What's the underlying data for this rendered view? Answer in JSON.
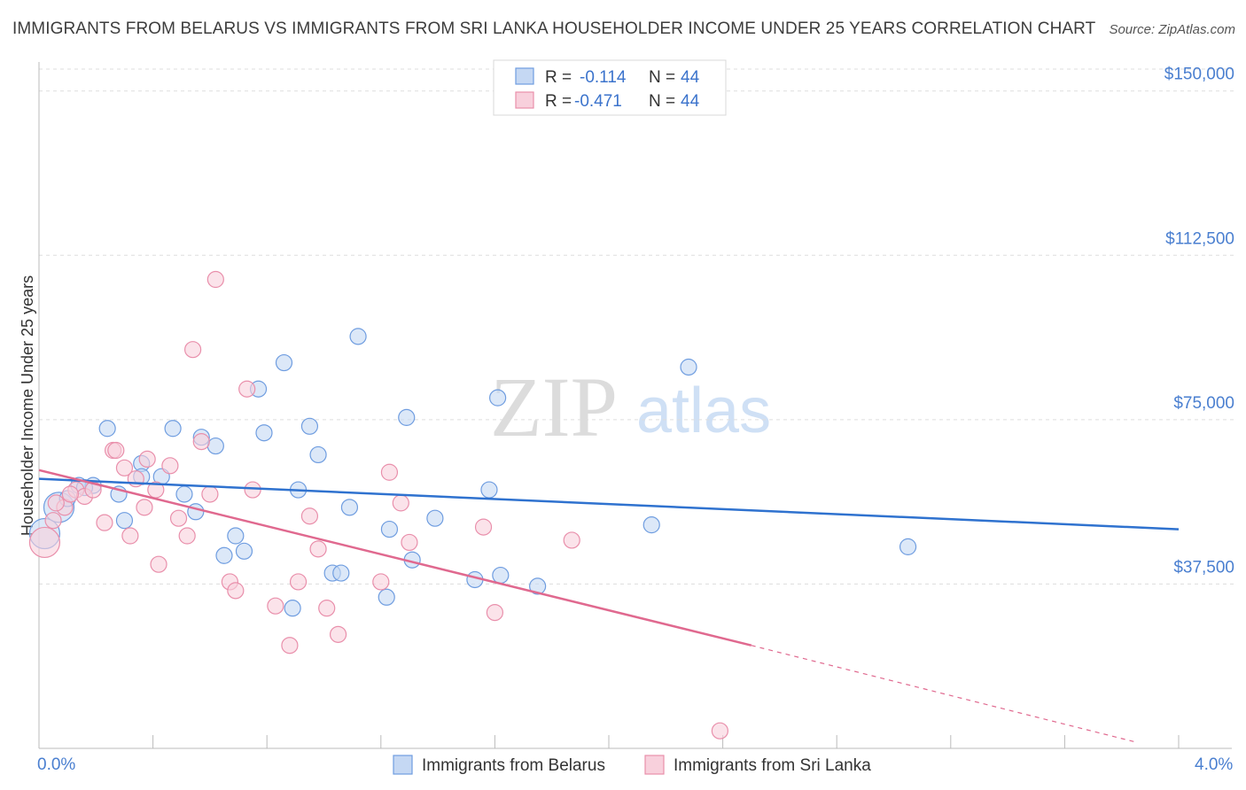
{
  "header": {
    "title": "IMMIGRANTS FROM BELARUS VS IMMIGRANTS FROM SRI LANKA HOUSEHOLDER INCOME UNDER 25 YEARS CORRELATION CHART",
    "source": "Source: ZipAtlas.com"
  },
  "watermark": {
    "zip": "ZIP",
    "atlas": "atlas"
  },
  "colors": {
    "belarus_fill": "#c5d8f3",
    "belarus_stroke": "#6f9de0",
    "belarus_line": "#2f72cf",
    "srilanka_fill": "#f8d0dc",
    "srilanka_stroke": "#e98fab",
    "srilanka_line": "#e0698f",
    "grid": "#dddddd",
    "axis_text": "#4a7fd0"
  },
  "legend": {
    "rows": [
      {
        "r_label": "R =",
        "r_value": "-0.114",
        "n_label": "N =",
        "n_value": "44"
      },
      {
        "r_label": "R =",
        "r_value": "-0.471",
        "n_label": "N =",
        "n_value": "44"
      }
    ]
  },
  "bottom_legend": {
    "belarus": "Immigrants from Belarus",
    "srilanka": "Immigrants from Sri Lanka"
  },
  "chart_data": {
    "type": "scatter",
    "title": "IMMIGRANTS FROM BELARUS VS IMMIGRANTS FROM SRI LANKA HOUSEHOLDER INCOME UNDER 25 YEARS CORRELATION CHART",
    "xlabel": "",
    "ylabel": "Householder Income Under 25 years",
    "xlim": [
      0,
      4.0
    ],
    "ylim": [
      0,
      155000
    ],
    "x_tick_labels": [
      "0.0%",
      "4.0%"
    ],
    "y_ticks": [
      37500,
      75000,
      112500,
      150000
    ],
    "y_tick_labels": [
      "$37,500",
      "$75,000",
      "$112,500",
      "$150,000"
    ],
    "series": [
      {
        "name": "Immigrants from Belarus",
        "r": -0.114,
        "n": 44,
        "trend": {
          "x": [
            0,
            4.0
          ],
          "y": [
            61500,
            50000
          ]
        },
        "points": [
          {
            "x": 0.02,
            "y": 49000,
            "big": true
          },
          {
            "x": 0.07,
            "y": 55000,
            "big": true
          },
          {
            "x": 0.1,
            "y": 57000
          },
          {
            "x": 0.14,
            "y": 60000
          },
          {
            "x": 0.19,
            "y": 60000
          },
          {
            "x": 0.24,
            "y": 73000
          },
          {
            "x": 0.28,
            "y": 58000
          },
          {
            "x": 0.3,
            "y": 52000
          },
          {
            "x": 0.36,
            "y": 65000
          },
          {
            "x": 0.36,
            "y": 62000
          },
          {
            "x": 0.43,
            "y": 62000
          },
          {
            "x": 0.47,
            "y": 73000
          },
          {
            "x": 0.51,
            "y": 58000
          },
          {
            "x": 0.55,
            "y": 54000
          },
          {
            "x": 0.57,
            "y": 71000
          },
          {
            "x": 0.62,
            "y": 69000
          },
          {
            "x": 0.65,
            "y": 44000
          },
          {
            "x": 0.69,
            "y": 48500
          },
          {
            "x": 0.72,
            "y": 45000
          },
          {
            "x": 0.77,
            "y": 82000
          },
          {
            "x": 0.79,
            "y": 72000
          },
          {
            "x": 0.86,
            "y": 88000
          },
          {
            "x": 0.89,
            "y": 32000
          },
          {
            "x": 0.91,
            "y": 59000
          },
          {
            "x": 0.95,
            "y": 73500
          },
          {
            "x": 0.98,
            "y": 67000
          },
          {
            "x": 1.03,
            "y": 40000
          },
          {
            "x": 1.06,
            "y": 40000
          },
          {
            "x": 1.09,
            "y": 55000
          },
          {
            "x": 1.12,
            "y": 94000
          },
          {
            "x": 1.22,
            "y": 34500
          },
          {
            "x": 1.23,
            "y": 50000
          },
          {
            "x": 1.31,
            "y": 43000
          },
          {
            "x": 1.29,
            "y": 75500
          },
          {
            "x": 1.39,
            "y": 52500
          },
          {
            "x": 1.53,
            "y": 38500
          },
          {
            "x": 1.58,
            "y": 59000
          },
          {
            "x": 1.61,
            "y": 80000
          },
          {
            "x": 1.62,
            "y": 39500
          },
          {
            "x": 1.75,
            "y": 37000
          },
          {
            "x": 2.15,
            "y": 51000
          },
          {
            "x": 2.28,
            "y": 87000
          },
          {
            "x": 3.05,
            "y": 46000
          },
          {
            "x": 0.16,
            "y": 59500
          }
        ]
      },
      {
        "name": "Immigrants from Sri Lanka",
        "r": -0.471,
        "n": 44,
        "trend": {
          "x": [
            0,
            2.5
          ],
          "y": [
            63500,
            23500
          ]
        },
        "trend_dashed": {
          "x": [
            2.5,
            4.0
          ],
          "y": [
            23500,
            -500
          ]
        },
        "points": [
          {
            "x": 0.02,
            "y": 47000,
            "big": true
          },
          {
            "x": 0.05,
            "y": 52000
          },
          {
            "x": 0.09,
            "y": 55000
          },
          {
            "x": 0.13,
            "y": 59000
          },
          {
            "x": 0.16,
            "y": 57500
          },
          {
            "x": 0.19,
            "y": 59000
          },
          {
            "x": 0.23,
            "y": 51500
          },
          {
            "x": 0.26,
            "y": 68000
          },
          {
            "x": 0.27,
            "y": 68000
          },
          {
            "x": 0.3,
            "y": 64000
          },
          {
            "x": 0.32,
            "y": 48500
          },
          {
            "x": 0.34,
            "y": 61500
          },
          {
            "x": 0.37,
            "y": 55000
          },
          {
            "x": 0.38,
            "y": 66000
          },
          {
            "x": 0.41,
            "y": 59000
          },
          {
            "x": 0.42,
            "y": 42000
          },
          {
            "x": 0.46,
            "y": 64500
          },
          {
            "x": 0.49,
            "y": 52500
          },
          {
            "x": 0.52,
            "y": 48500
          },
          {
            "x": 0.54,
            "y": 91000
          },
          {
            "x": 0.57,
            "y": 70000
          },
          {
            "x": 0.6,
            "y": 58000
          },
          {
            "x": 0.62,
            "y": 107000
          },
          {
            "x": 0.67,
            "y": 38000
          },
          {
            "x": 0.69,
            "y": 36000
          },
          {
            "x": 0.73,
            "y": 82000
          },
          {
            "x": 0.75,
            "y": 59000
          },
          {
            "x": 0.83,
            "y": 32500
          },
          {
            "x": 0.88,
            "y": 23500
          },
          {
            "x": 0.91,
            "y": 38000
          },
          {
            "x": 0.95,
            "y": 53000
          },
          {
            "x": 0.98,
            "y": 45500
          },
          {
            "x": 1.01,
            "y": 32000
          },
          {
            "x": 1.05,
            "y": 26000
          },
          {
            "x": 1.2,
            "y": 38000
          },
          {
            "x": 1.23,
            "y": 63000
          },
          {
            "x": 1.27,
            "y": 56000
          },
          {
            "x": 1.3,
            "y": 47000
          },
          {
            "x": 1.56,
            "y": 50500
          },
          {
            "x": 1.6,
            "y": 31000
          },
          {
            "x": 1.87,
            "y": 47500
          },
          {
            "x": 2.39,
            "y": 4000
          },
          {
            "x": 0.11,
            "y": 58000
          },
          {
            "x": 0.06,
            "y": 56000
          }
        ]
      }
    ],
    "legend_position": "top-center"
  }
}
